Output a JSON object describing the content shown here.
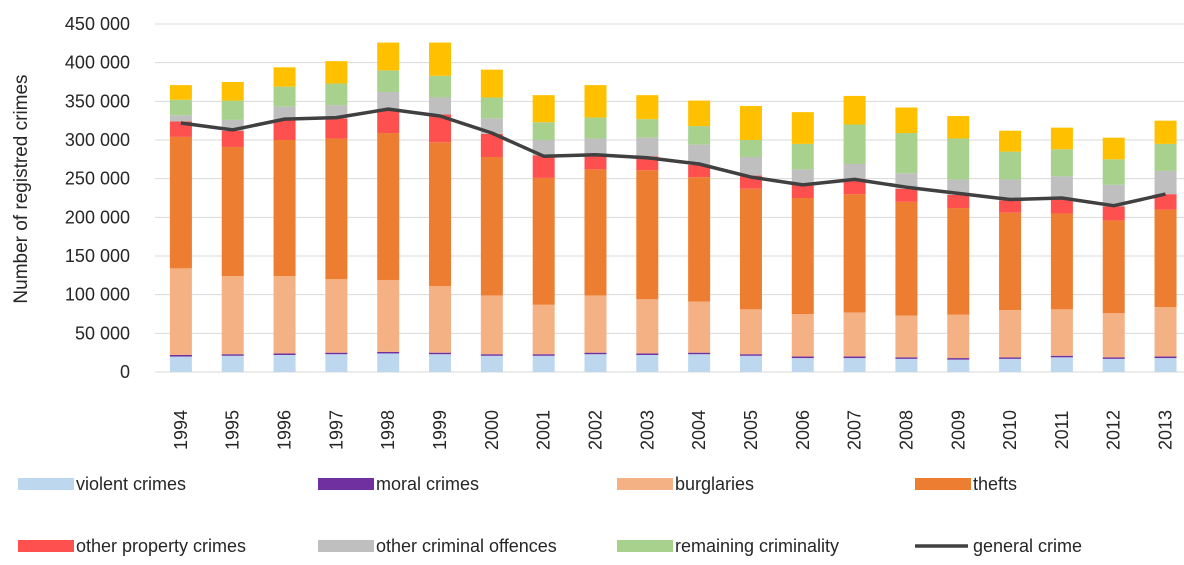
{
  "chart_data": {
    "type": "bar",
    "stacked": true,
    "ylabel": "Number of registred crimes",
    "xlabel": "",
    "ylim": [
      0,
      450000
    ],
    "y_ticks": [
      0,
      50000,
      100000,
      150000,
      200000,
      250000,
      300000,
      350000,
      400000,
      450000
    ],
    "y_tick_labels": [
      "0",
      "50 000",
      "100 000",
      "150 000",
      "200 000",
      "250 000",
      "300 000",
      "350 000",
      "400 000",
      "450 000"
    ],
    "categories": [
      "1994",
      "1995",
      "1996",
      "1997",
      "1998",
      "1999",
      "2000",
      "2001",
      "2002",
      "2003",
      "2004",
      "2005",
      "2006",
      "2007",
      "2008",
      "2009",
      "2010",
      "2011",
      "2012",
      "2013"
    ],
    "series": [
      {
        "name": "violent crimes",
        "color": "#bdd7ee",
        "values": [
          20000,
          21000,
          22000,
          23000,
          24000,
          23000,
          21000,
          21000,
          23000,
          22000,
          23000,
          21000,
          18000,
          18000,
          17000,
          16000,
          17000,
          19000,
          17000,
          18000
        ]
      },
      {
        "name": "moral crimes",
        "color": "#7030a0",
        "values": [
          2000,
          2000,
          2000,
          2000,
          2000,
          2000,
          2000,
          2000,
          2000,
          2000,
          2000,
          2000,
          2000,
          2000,
          2000,
          2000,
          2000,
          2000,
          2000,
          2000
        ]
      },
      {
        "name": "burglaries",
        "color": "#f4b183",
        "values": [
          112000,
          101000,
          100000,
          95000,
          93000,
          86000,
          76000,
          64000,
          74000,
          70000,
          66000,
          58000,
          55000,
          57000,
          54000,
          56000,
          61000,
          60000,
          57000,
          64000
        ]
      },
      {
        "name": "thefts",
        "color": "#ed7d31",
        "values": [
          170000,
          167000,
          176000,
          182000,
          190000,
          186000,
          179000,
          164000,
          163000,
          167000,
          161000,
          156000,
          150000,
          153000,
          147000,
          138000,
          126000,
          124000,
          120000,
          126000
        ]
      },
      {
        "name": "other property crimes",
        "color": "#ff5050",
        "values": [
          20000,
          21000,
          26000,
          26000,
          29000,
          36000,
          30000,
          29000,
          18000,
          18000,
          16000,
          17000,
          17000,
          17000,
          17000,
          17000,
          16000,
          18000,
          18000,
          20000
        ]
      },
      {
        "name": "other criminal offences",
        "color": "#bfbfbf",
        "values": [
          8000,
          14000,
          17000,
          17000,
          24000,
          22000,
          20000,
          20000,
          22000,
          24000,
          26000,
          24000,
          20000,
          22000,
          20000,
          20000,
          27000,
          30000,
          28000,
          30000
        ]
      },
      {
        "name": "remaining criminality",
        "color": "#a9d18e",
        "values": [
          20000,
          25000,
          26000,
          28000,
          28000,
          28000,
          27000,
          23000,
          27000,
          24000,
          24000,
          22000,
          33000,
          51000,
          52000,
          53000,
          36000,
          35000,
          33000,
          35000
        ]
      },
      {
        "name": "",
        "color": "#ffc000",
        "values": [
          19000,
          24000,
          25000,
          29000,
          36000,
          43000,
          36000,
          35000,
          42000,
          31000,
          33000,
          44000,
          41000,
          37000,
          33000,
          29000,
          27000,
          28000,
          28000,
          30000
        ]
      }
    ],
    "line_series": {
      "name": "general crime",
      "color": "#404040",
      "values": [
        322000,
        313000,
        327000,
        329000,
        340000,
        331000,
        309000,
        279000,
        281000,
        277000,
        269000,
        252000,
        242000,
        249000,
        239000,
        231000,
        223000,
        225000,
        215000,
        230000
      ]
    },
    "legend": [
      {
        "label": "violent crimes",
        "color": "#bdd7ee",
        "kind": "bar"
      },
      {
        "label": "moral crimes",
        "color": "#7030a0",
        "kind": "bar"
      },
      {
        "label": "burglaries",
        "color": "#f4b183",
        "kind": "bar"
      },
      {
        "label": "thefts",
        "color": "#ed7d31",
        "kind": "bar"
      },
      {
        "label": "other property crimes",
        "color": "#ff5050",
        "kind": "bar"
      },
      {
        "label": "other criminal offences",
        "color": "#bfbfbf",
        "kind": "bar"
      },
      {
        "label": "remaining criminality",
        "color": "#a9d18e",
        "kind": "bar"
      },
      {
        "label": "general crime",
        "color": "#404040",
        "kind": "line"
      }
    ],
    "legend_position": "bottom",
    "grid": true
  }
}
